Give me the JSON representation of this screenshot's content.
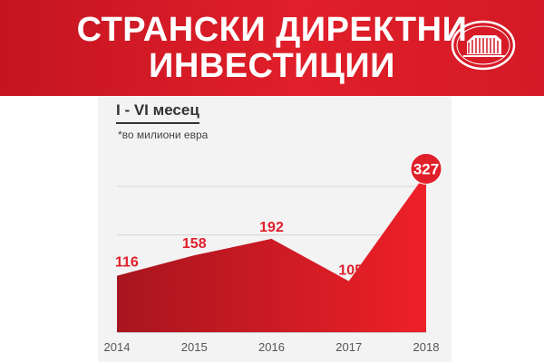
{
  "header": {
    "title_line1": "СТРАНСКИ ДИРЕКТНИ",
    "title_line2": "ИНВЕСТИЦИИ"
  },
  "chart_labels": {
    "period": "I - VI месец",
    "unit_note": "*во милиони евра"
  },
  "colors": {
    "brand_red": "#e01f2a",
    "dark_red": "#a8151f",
    "text_dark": "#333333"
  },
  "chart_data": {
    "type": "area",
    "categories": [
      "2014",
      "2015",
      "2016",
      "2017",
      "2018"
    ],
    "values": [
      116,
      158,
      192,
      105,
      327
    ],
    "data_labels": [
      "116",
      "158",
      "192",
      "105",
      "327"
    ],
    "highlight_index": 4,
    "ylim": [
      0,
      380
    ],
    "grid": true,
    "title": "",
    "xlabel": "",
    "ylabel": ""
  }
}
